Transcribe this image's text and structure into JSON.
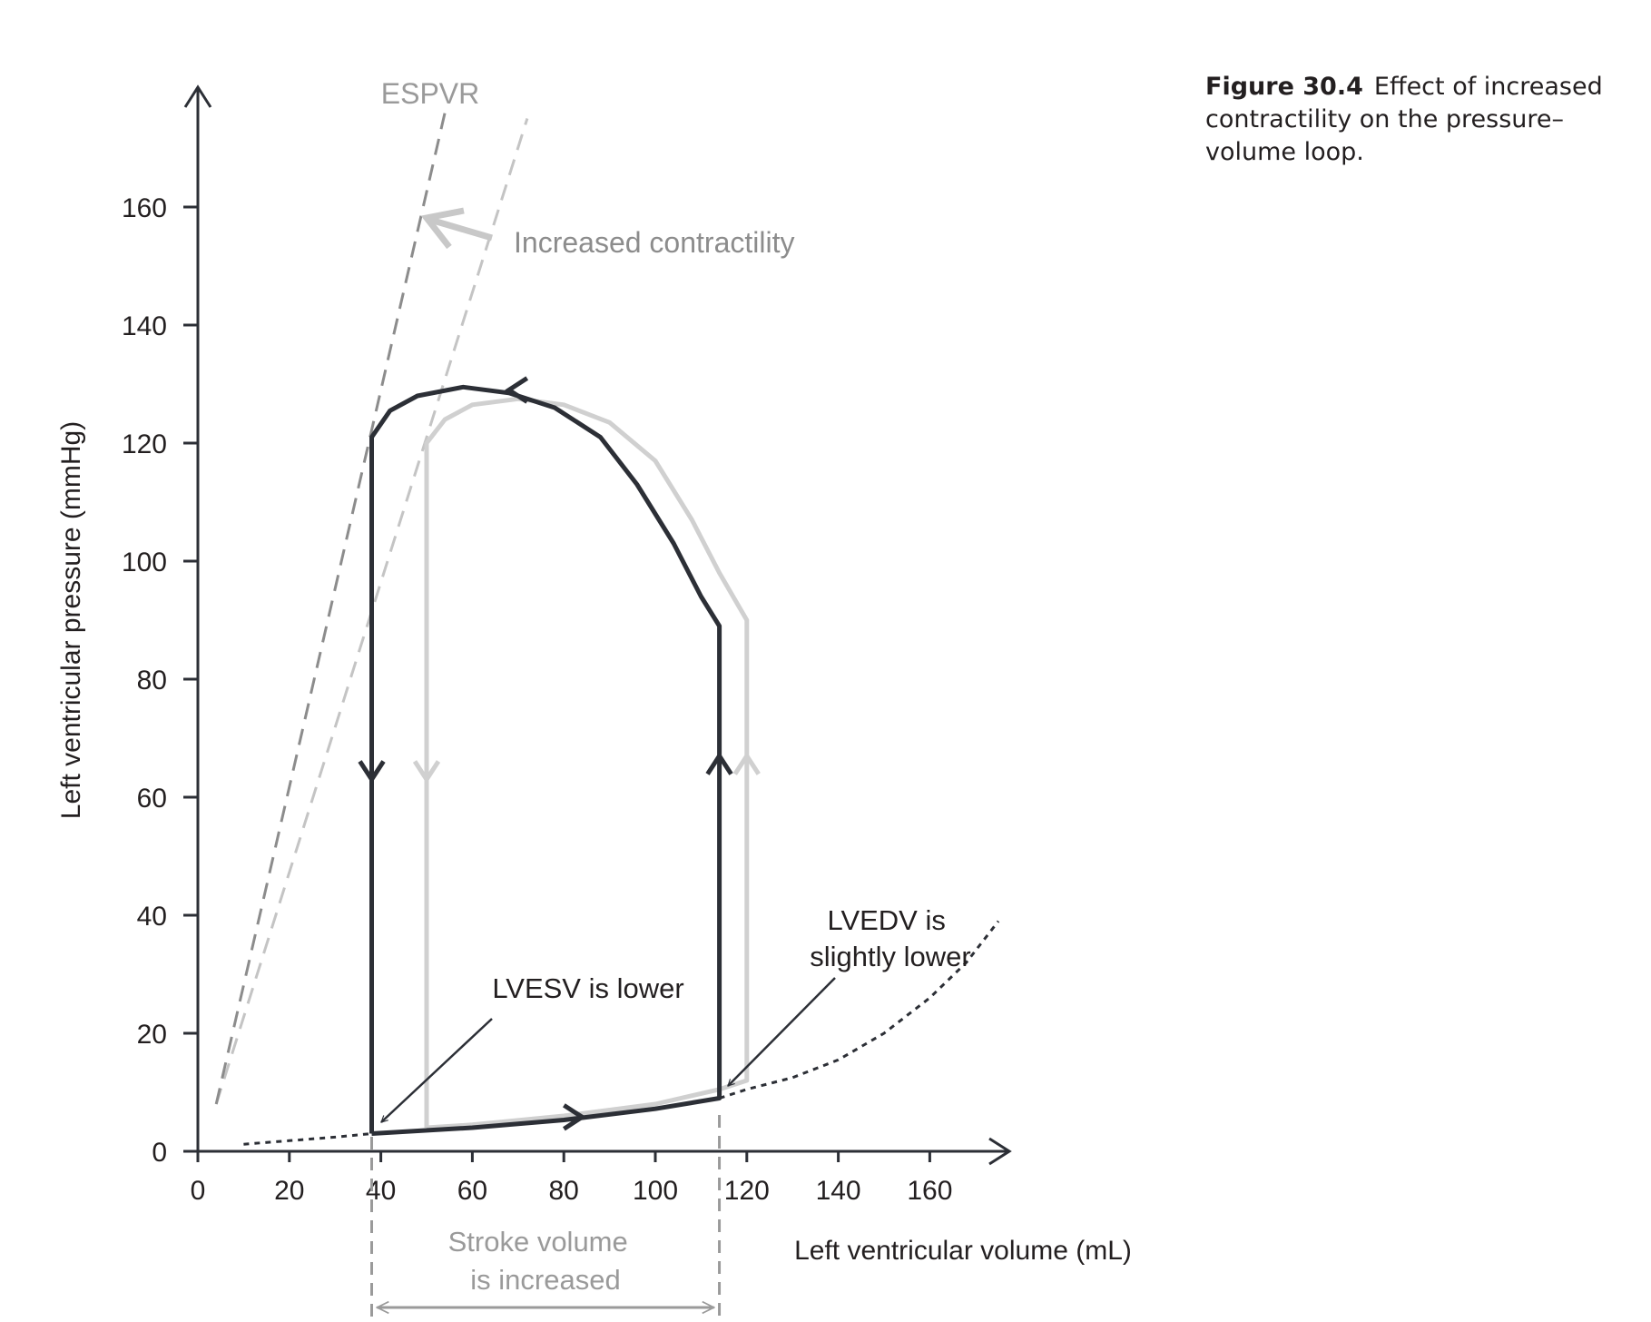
{
  "caption": {
    "label": "Figure 30.4",
    "text": "Effect of increased contractility on the pressure–volume loop."
  },
  "chart_data": {
    "type": "line",
    "xlabel": "Left ventricular volume (mL)",
    "ylabel": "Left ventricular pressure (mmHg)",
    "xlim": [
      0,
      175
    ],
    "ylim": [
      0,
      180
    ],
    "xticks": [
      0,
      20,
      40,
      60,
      80,
      100,
      120,
      140,
      160
    ],
    "yticks": [
      0,
      20,
      40,
      60,
      80,
      100,
      120,
      140,
      160
    ],
    "grid": false,
    "colors": {
      "baseline": "#d0d0d0",
      "increased": "#2c2f36",
      "annotation": "#9a9a9a",
      "espvr_increased": "#8c8c8c",
      "espvr_baseline": "#c4c4c4"
    },
    "series": [
      {
        "role": "baseline",
        "points": [
          [
            50,
            4
          ],
          [
            50,
            120
          ],
          [
            54,
            124
          ],
          [
            60,
            126.5
          ],
          [
            70,
            127.5
          ],
          [
            80,
            126.5
          ],
          [
            90,
            123.5
          ],
          [
            100,
            117
          ],
          [
            108,
            107
          ],
          [
            114,
            98
          ],
          [
            120,
            90
          ],
          [
            120,
            12
          ],
          [
            114,
            10.5
          ],
          [
            100,
            8
          ],
          [
            80,
            6
          ],
          [
            60,
            4.5
          ],
          [
            50,
            4
          ]
        ]
      },
      {
        "role": "increased",
        "points": [
          [
            38,
            3
          ],
          [
            38,
            121
          ],
          [
            42,
            125.5
          ],
          [
            48,
            128
          ],
          [
            58,
            129.5
          ],
          [
            68,
            128.5
          ],
          [
            78,
            126
          ],
          [
            88,
            121
          ],
          [
            96,
            113
          ],
          [
            104,
            103
          ],
          [
            110,
            94
          ],
          [
            114,
            89
          ],
          [
            114,
            9
          ],
          [
            100,
            7.2
          ],
          [
            80,
            5.3
          ],
          [
            60,
            4
          ],
          [
            38,
            3
          ]
        ]
      },
      {
        "role": "edpvr",
        "points": [
          [
            10,
            1.2
          ],
          [
            20,
            1.8
          ],
          [
            30,
            2.4
          ],
          [
            38,
            3
          ],
          [
            60,
            4
          ],
          [
            80,
            5.4
          ],
          [
            100,
            7.2
          ],
          [
            114,
            9
          ],
          [
            120,
            10.5
          ],
          [
            130,
            12.5
          ],
          [
            140,
            15.5
          ],
          [
            150,
            20
          ],
          [
            160,
            26
          ],
          [
            168,
            32
          ],
          [
            175,
            39
          ]
        ]
      },
      {
        "role": "espvr-increased",
        "points": [
          [
            4,
            8
          ],
          [
            54,
            176
          ]
        ]
      },
      {
        "role": "espvr-baseline",
        "points": [
          [
            4,
            8
          ],
          [
            72,
            175
          ]
        ]
      }
    ],
    "annotations": [
      {
        "text": "ESPVR"
      },
      {
        "text": "Increased contractility"
      },
      {
        "text": "LVESV is lower"
      },
      {
        "text_lines": [
          "LVEDV is",
          "slightly lower"
        ]
      },
      {
        "text_lines": [
          "Stroke volume",
          "is increased"
        ]
      }
    ]
  }
}
